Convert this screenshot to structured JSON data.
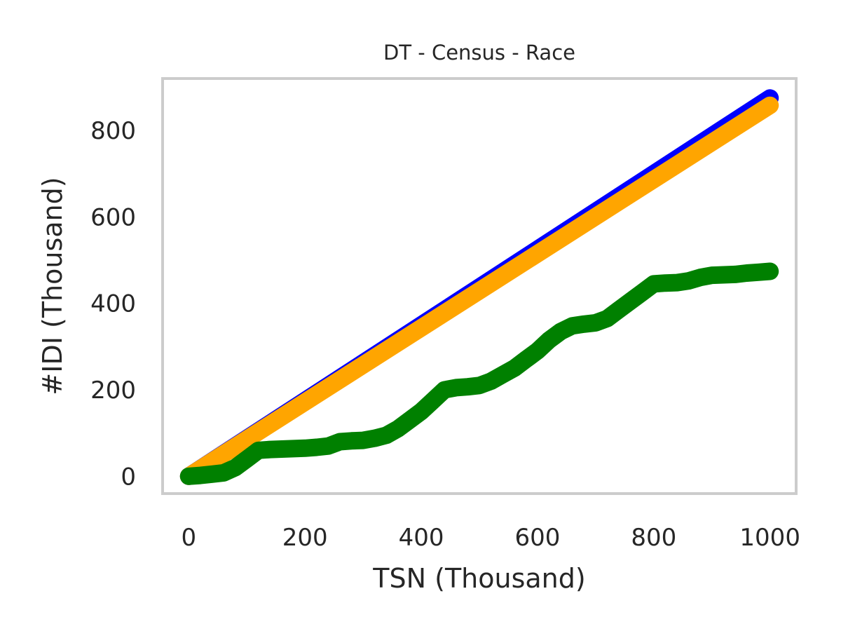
{
  "chart_data": {
    "type": "line",
    "title": "DT - Census - Race",
    "xlabel": "TSN (Thousand)",
    "ylabel": "#IDI (Thousand)",
    "xlim": [
      -45,
      1045
    ],
    "ylim": [
      -40,
      920
    ],
    "xticks": [
      0,
      200,
      400,
      600,
      800,
      1000
    ],
    "yticks": [
      0,
      200,
      400,
      600,
      800
    ],
    "grid": false,
    "series": [
      {
        "name": "blue",
        "color": "#0000ff",
        "x": [
          0,
          1000
        ],
        "y": [
          0,
          875
        ]
      },
      {
        "name": "orange",
        "color": "#ffa500",
        "x": [
          0,
          1000
        ],
        "y": [
          0,
          858
        ]
      },
      {
        "name": "green",
        "color": "#008000",
        "x": [
          0,
          20,
          40,
          60,
          80,
          100,
          120,
          140,
          160,
          180,
          200,
          220,
          240,
          260,
          280,
          300,
          320,
          340,
          360,
          380,
          400,
          420,
          440,
          460,
          480,
          500,
          520,
          540,
          560,
          580,
          600,
          620,
          640,
          660,
          680,
          700,
          720,
          740,
          760,
          780,
          800,
          820,
          840,
          860,
          880,
          900,
          920,
          940,
          960,
          980,
          1000
        ],
        "y": [
          0,
          2,
          5,
          8,
          20,
          40,
          60,
          62,
          63,
          64,
          65,
          67,
          70,
          80,
          82,
          83,
          88,
          95,
          110,
          130,
          150,
          175,
          200,
          205,
          207,
          210,
          220,
          235,
          250,
          270,
          290,
          315,
          335,
          348,
          352,
          355,
          365,
          385,
          405,
          425,
          445,
          447,
          448,
          452,
          460,
          465,
          466,
          467,
          470,
          472,
          474
        ]
      }
    ]
  }
}
